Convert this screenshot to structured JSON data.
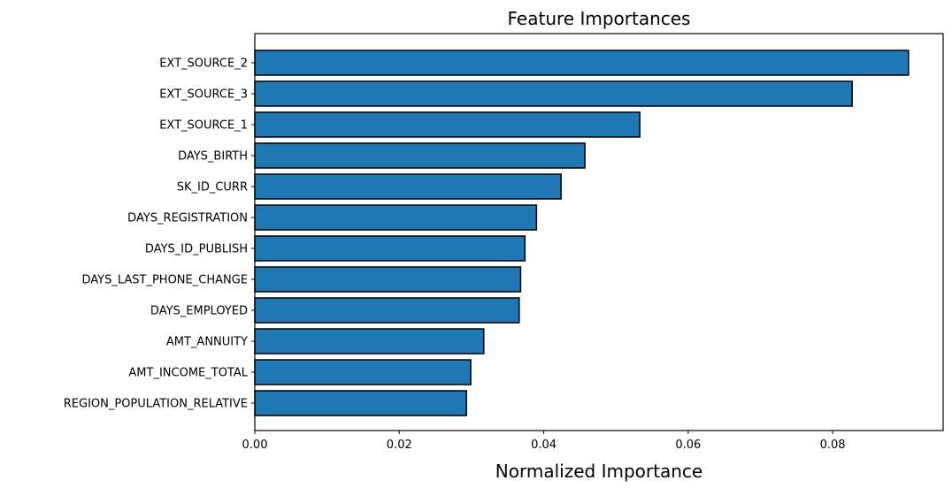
{
  "chart_data": {
    "type": "bar",
    "orientation": "horizontal",
    "title": "Feature Importances",
    "xlabel": "Normalized Importance",
    "ylabel": "",
    "categories": [
      "EXT_SOURCE_2",
      "EXT_SOURCE_3",
      "EXT_SOURCE_1",
      "DAYS_BIRTH",
      "SK_ID_CURR",
      "DAYS_REGISTRATION",
      "DAYS_ID_PUBLISH",
      "DAYS_LAST_PHONE_CHANGE",
      "DAYS_EMPLOYED",
      "AMT_ANNUITY",
      "AMT_INCOME_TOTAL",
      "REGION_POPULATION_RELATIVE"
    ],
    "values": [
      0.0905,
      0.0827,
      0.0533,
      0.0457,
      0.0424,
      0.039,
      0.0374,
      0.0368,
      0.0366,
      0.0317,
      0.0299,
      0.0293
    ],
    "xlim": [
      0,
      0.0953
    ],
    "xticks": [
      0.0,
      0.02,
      0.04,
      0.06,
      0.08
    ],
    "xtick_labels": [
      "0.00",
      "0.02",
      "0.04",
      "0.06",
      "0.08"
    ],
    "grid": false,
    "legend": "none",
    "bar_color": "#1f77b4",
    "bar_edge_color": "#000000",
    "spine_color": "#000000",
    "background_color": "#ffffff"
  }
}
